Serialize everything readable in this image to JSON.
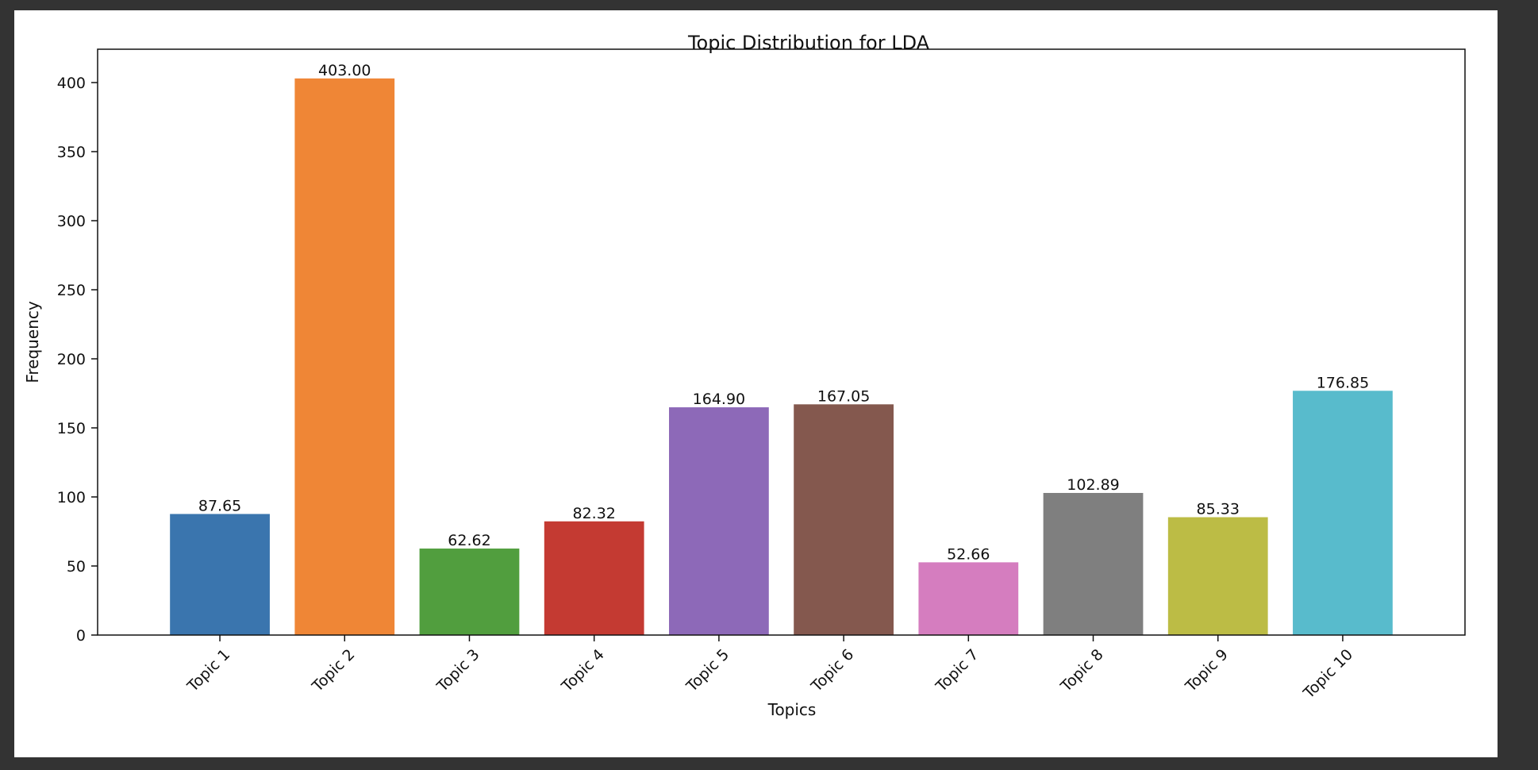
{
  "chart_data": {
    "type": "bar",
    "title": "Topic Distribution for LDA",
    "xlabel": "Topics",
    "ylabel": "Frequency",
    "categories": [
      "Topic 1",
      "Topic 2",
      "Topic 3",
      "Topic 4",
      "Topic 5",
      "Topic 6",
      "Topic 7",
      "Topic 8",
      "Topic 9",
      "Topic 10"
    ],
    "values": [
      87.65,
      403.0,
      62.62,
      82.32,
      164.9,
      167.05,
      52.66,
      102.89,
      85.33,
      176.85
    ],
    "value_labels": [
      "87.65",
      "403.00",
      "62.62",
      "82.32",
      "164.90",
      "167.05",
      "52.66",
      "102.89",
      "85.33",
      "176.85"
    ],
    "colors": [
      "#3a75ae",
      "#ef8636",
      "#519e3e",
      "#c43a32",
      "#8d69b8",
      "#84584e",
      "#d57dbf",
      "#7f7f7f",
      "#bcbc45",
      "#58bbcc"
    ],
    "ylim": [
      0,
      424.15
    ],
    "yticks": [
      0,
      50,
      100,
      150,
      200,
      250,
      300,
      350,
      400
    ],
    "grid": false,
    "legend": false
  }
}
